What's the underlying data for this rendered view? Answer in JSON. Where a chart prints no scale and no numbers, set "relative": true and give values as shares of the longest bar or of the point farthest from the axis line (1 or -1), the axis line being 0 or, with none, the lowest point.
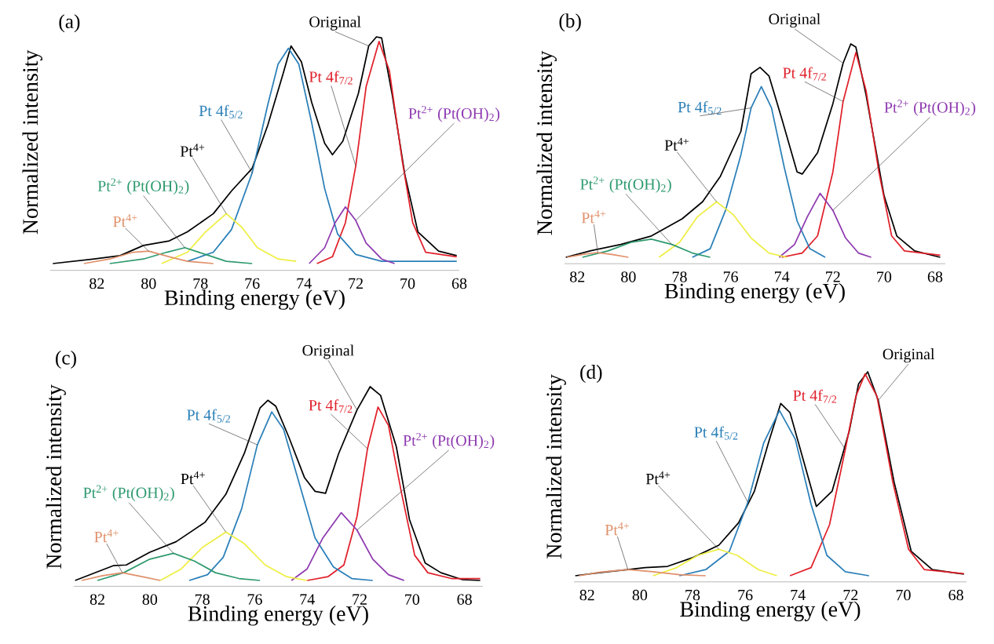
{
  "chart_data": [
    {
      "type": "line",
      "title": "(a)",
      "xlabel": "Binding energy (eV)",
      "ylabel": "Normalized intensity",
      "relative": true,
      "xlim": [
        83.8,
        68.0
      ],
      "xticks": [
        82,
        80,
        78,
        76,
        74,
        72,
        70,
        68
      ],
      "series": [
        {
          "name": "Original",
          "color": "#000000",
          "x": [
            83.7,
            82.1,
            81.1,
            80.2,
            79.2,
            78.5,
            77.5,
            76.8,
            76.0,
            75.4,
            74.8,
            74.5,
            74.1,
            73.7,
            73.2,
            72.9,
            72.5,
            71.9,
            71.5,
            71.2,
            71.0,
            70.6,
            70.1,
            69.6,
            68.8,
            68.1
          ],
          "values": [
            0,
            0.02,
            0.035,
            0.08,
            0.1,
            0.14,
            0.22,
            0.32,
            0.42,
            0.61,
            0.84,
            0.96,
            0.89,
            0.71,
            0.53,
            0.48,
            0.54,
            0.75,
            0.96,
            1.0,
            0.995,
            0.75,
            0.39,
            0.14,
            0.055,
            0.035
          ]
        },
        {
          "name": "Pt 4f$_{7/2}$",
          "color": "#e0202a",
          "x": [
            73.5,
            72.9,
            72.4,
            72.0,
            71.6,
            71.1,
            70.7,
            70.2,
            69.8,
            69.3,
            68.1
          ],
          "values": [
            0,
            0.03,
            0.18,
            0.43,
            0.78,
            0.98,
            0.85,
            0.45,
            0.18,
            0.05,
            0.03
          ]
        },
        {
          "name": "Pt 4f$_{5/2}$",
          "color": "#2a7fb8",
          "x": [
            78.5,
            77.5,
            76.8,
            76.0,
            75.4,
            75.0,
            74.6,
            74.2,
            73.7,
            73.2,
            72.7,
            72.0,
            71.0,
            68.1
          ],
          "values": [
            0.01,
            0.05,
            0.15,
            0.4,
            0.7,
            0.88,
            0.95,
            0.88,
            0.62,
            0.33,
            0.13,
            0.04,
            0.01,
            0.01
          ]
        },
        {
          "name": "Pt$^{2+}$ (Pt(OH)$_{2}$)",
          "color": "#8e3ab0",
          "x": [
            73.8,
            73.2,
            72.8,
            72.4,
            72.0,
            71.6,
            71.0,
            70.5
          ],
          "values": [
            0,
            0.07,
            0.18,
            0.25,
            0.19,
            0.09,
            0.02,
            0
          ]
        },
        {
          "name": "Pt$^{4+}$",
          "color": "#eeee44",
          "x": [
            79.5,
            78.5,
            77.8,
            77.0,
            76.4,
            75.8,
            75.0,
            74.3
          ],
          "values": [
            0,
            0.05,
            0.14,
            0.22,
            0.16,
            0.07,
            0.02,
            0.01
          ]
        },
        {
          "name": "Pt$^{2+}$ (Pt(OH)$_{2}$)",
          "color": "#2e9a6e",
          "x": [
            81.5,
            80.2,
            79.3,
            78.6,
            77.8,
            77.0,
            76.0
          ],
          "values": [
            0,
            0.02,
            0.05,
            0.07,
            0.04,
            0.01,
            0
          ]
        },
        {
          "name": "Pt$^{4+}$",
          "color": "#e0906a",
          "x": [
            82.5,
            81.5,
            80.6,
            80.0,
            79.2,
            78.5,
            77.5
          ],
          "values": [
            0,
            0.02,
            0.05,
            0.055,
            0.03,
            0.01,
            0
          ]
        }
      ]
    },
    {
      "type": "line",
      "title": "(b)",
      "xlabel": "Binding energy (eV)",
      "ylabel": "Normalized intensity",
      "relative": true,
      "xlim": [
        82.5,
        67.6
      ],
      "xticks": [
        82,
        80,
        78,
        76,
        74,
        72,
        70,
        68
      ],
      "series": [
        {
          "name": "Original",
          "color": "#000000",
          "x": [
            82.45,
            81.5,
            80.3,
            79.1,
            77.9,
            77.1,
            76.4,
            75.6,
            75.2,
            74.85,
            74.5,
            74.0,
            73.4,
            73.2,
            72.6,
            72.0,
            71.6,
            71.3,
            71.1,
            70.7,
            70.0,
            69.5,
            68.8,
            67.8
          ],
          "values": [
            0,
            0.03,
            0.06,
            0.1,
            0.18,
            0.26,
            0.38,
            0.59,
            0.86,
            0.89,
            0.85,
            0.65,
            0.4,
            0.39,
            0.49,
            0.72,
            0.91,
            1.0,
            0.985,
            0.76,
            0.29,
            0.1,
            0.03,
            0
          ]
        },
        {
          "name": "Pt 4f$_{7/2}$",
          "color": "#e0202a",
          "x": [
            74.0,
            73.2,
            72.6,
            72.0,
            71.6,
            71.1,
            70.7,
            70.2,
            69.7,
            69.2,
            67.8
          ],
          "values": [
            0,
            0.02,
            0.1,
            0.4,
            0.73,
            0.96,
            0.78,
            0.4,
            0.1,
            0.03,
            0.01
          ]
        },
        {
          "name": "Pt 4f$_{5/2}$",
          "color": "#2a7fb8",
          "x": [
            77.5,
            76.8,
            76.2,
            75.6,
            75.2,
            74.8,
            74.4,
            73.9,
            73.4,
            72.9,
            72.3
          ],
          "values": [
            0,
            0.04,
            0.22,
            0.48,
            0.7,
            0.8,
            0.7,
            0.42,
            0.17,
            0.04,
            0
          ]
        },
        {
          "name": "Pt$^{2+}$ (Pt(OH)$_{2}$)",
          "color": "#8e3ab0",
          "x": [
            74.1,
            73.5,
            73.0,
            72.5,
            72.0,
            71.5,
            71.0,
            70.5
          ],
          "values": [
            0,
            0.06,
            0.19,
            0.3,
            0.22,
            0.09,
            0.02,
            0
          ]
        },
        {
          "name": "Pt$^{4+}$",
          "color": "#eeee44",
          "x": [
            78.8,
            78.0,
            77.3,
            76.55,
            75.9,
            75.2,
            74.5,
            73.8
          ],
          "values": [
            0,
            0.07,
            0.19,
            0.26,
            0.2,
            0.09,
            0.02,
            0
          ]
        },
        {
          "name": "Pt$^{2+}$ (Pt(OH)$_{2}$)",
          "color": "#2e9a6e",
          "x": [
            81.8,
            80.8,
            79.9,
            79.1,
            78.3,
            77.5,
            76.8
          ],
          "values": [
            0,
            0.03,
            0.07,
            0.085,
            0.06,
            0.02,
            0
          ]
        },
        {
          "name": "Pt$^{4+}$",
          "color": "#e0906a",
          "x": [
            82.4,
            81.7,
            81.2,
            80.6,
            80.0
          ],
          "values": [
            0,
            0.015,
            0.022,
            0.012,
            0
          ]
        }
      ]
    },
    {
      "type": "line",
      "title": "(c)",
      "xlabel": "Binding energy (eV)",
      "ylabel": "Normalized intensity",
      "relative": true,
      "xlim": [
        82.9,
        67.3
      ],
      "xticks": [
        82,
        80,
        78,
        76,
        74,
        72,
        70,
        68
      ],
      "series": [
        {
          "name": "Original",
          "color": "#000000",
          "x": [
            82.85,
            81.4,
            80.9,
            80.0,
            79.0,
            77.9,
            77.1,
            76.4,
            75.8,
            75.5,
            75.2,
            74.7,
            74.1,
            73.7,
            73.3,
            72.8,
            72.1,
            71.6,
            71.2,
            70.6,
            70.1,
            69.5,
            68.9,
            68.1,
            67.4
          ],
          "values": [
            0,
            0.076,
            0.08,
            0.146,
            0.2,
            0.3,
            0.445,
            0.655,
            0.89,
            0.93,
            0.9,
            0.74,
            0.53,
            0.46,
            0.45,
            0.655,
            0.88,
            1.0,
            0.955,
            0.69,
            0.315,
            0.09,
            0.04,
            0.005,
            0
          ]
        },
        {
          "name": "Pt 4f$_{7/2}$",
          "color": "#e0202a",
          "x": [
            74.0,
            73.2,
            72.6,
            72.1,
            71.7,
            71.3,
            70.9,
            70.4,
            69.9,
            69.4,
            68.5,
            67.4
          ],
          "values": [
            0,
            0.02,
            0.08,
            0.33,
            0.68,
            0.895,
            0.8,
            0.45,
            0.13,
            0.04,
            0.01,
            0.01
          ]
        },
        {
          "name": "Pt 4f$_{5/2}$",
          "color": "#2a7fb8",
          "x": [
            78.5,
            77.8,
            77.2,
            76.5,
            75.9,
            75.35,
            74.9,
            74.3,
            73.7,
            73.0,
            72.3,
            71.5
          ],
          "values": [
            0,
            0.03,
            0.12,
            0.37,
            0.7,
            0.87,
            0.78,
            0.5,
            0.22,
            0.07,
            0.01,
            0
          ]
        },
        {
          "name": "Pt$^{2+}$ (Pt(OH)$_{2}$)",
          "color": "#8e3ab0",
          "x": [
            74.6,
            74.0,
            73.4,
            72.7,
            72.1,
            71.5,
            70.9,
            70.3
          ],
          "values": [
            0,
            0.06,
            0.22,
            0.35,
            0.26,
            0.11,
            0.03,
            0
          ]
        },
        {
          "name": "Pt$^{4+}$",
          "color": "#eeee44",
          "x": [
            79.6,
            78.8,
            78.0,
            77.1,
            76.4,
            75.6,
            74.8,
            74.0
          ],
          "values": [
            0,
            0.06,
            0.17,
            0.25,
            0.19,
            0.08,
            0.02,
            0
          ]
        },
        {
          "name": "Pt$^{2+}$ (Pt(OH)$_{2}$)",
          "color": "#2e9a6e",
          "x": [
            82.0,
            81.0,
            80.0,
            79.1,
            78.3,
            77.5,
            76.6,
            75.8
          ],
          "values": [
            0,
            0.04,
            0.11,
            0.14,
            0.1,
            0.04,
            0.01,
            0
          ]
        },
        {
          "name": "Pt$^{4+}$",
          "color": "#e0906a",
          "x": [
            82.6,
            81.8,
            81.05,
            80.3,
            79.6
          ],
          "values": [
            0,
            0.025,
            0.04,
            0.02,
            0
          ]
        }
      ]
    },
    {
      "type": "line",
      "title": "(d)",
      "xlabel": "Binding energy (eV)",
      "ylabel": "Normalized intensity",
      "relative": true,
      "xlim": [
        82.5,
        67.6
      ],
      "xticks": [
        82,
        80,
        78,
        76,
        74,
        72,
        70,
        68
      ],
      "series": [
        {
          "name": "Original",
          "color": "#000000",
          "x": [
            82.45,
            81.55,
            80.45,
            79.8,
            78.95,
            77.97,
            77.0,
            76.25,
            75.65,
            75.1,
            74.65,
            74.3,
            73.8,
            73.3,
            72.7,
            72.05,
            71.7,
            71.35,
            70.95,
            70.35,
            69.7,
            68.9,
            68.1,
            67.7
          ],
          "values": [
            0,
            0.015,
            0.03,
            0.04,
            0.046,
            0.09,
            0.15,
            0.26,
            0.415,
            0.66,
            0.845,
            0.8,
            0.57,
            0.34,
            0.415,
            0.71,
            0.94,
            1.0,
            0.86,
            0.46,
            0.12,
            0.03,
            0.015,
            0.008
          ]
        },
        {
          "name": "Pt 4f$_{7/2}$",
          "color": "#e0202a",
          "x": [
            74.3,
            73.5,
            72.8,
            72.2,
            71.8,
            71.45,
            71.0,
            70.4,
            69.8,
            69.2,
            67.7
          ],
          "values": [
            0,
            0.04,
            0.25,
            0.62,
            0.88,
            0.99,
            0.88,
            0.46,
            0.13,
            0.03,
            0.01
          ]
        },
        {
          "name": "Pt 4f$_{5/2}$",
          "color": "#2a7fb8",
          "x": [
            78.5,
            77.5,
            76.6,
            75.9,
            75.3,
            74.7,
            74.1,
            73.5,
            72.9,
            72.2,
            71.3
          ],
          "values": [
            0,
            0.03,
            0.12,
            0.36,
            0.65,
            0.81,
            0.67,
            0.35,
            0.1,
            0.02,
            0
          ]
        },
        {
          "name": "Pt$^{4+}$",
          "color": "#eeee44",
          "x": [
            79.5,
            78.6,
            77.8,
            77.0,
            76.3,
            75.5,
            74.8
          ],
          "values": [
            0,
            0.04,
            0.1,
            0.13,
            0.1,
            0.03,
            0
          ]
        },
        {
          "name": "Pt$^{4+}$",
          "color": "#e0906a",
          "x": [
            82.3,
            81.5,
            80.45,
            79.5,
            78.5,
            77.5
          ],
          "values": [
            0,
            0.018,
            0.03,
            0.02,
            0.005,
            0
          ]
        }
      ]
    }
  ]
}
